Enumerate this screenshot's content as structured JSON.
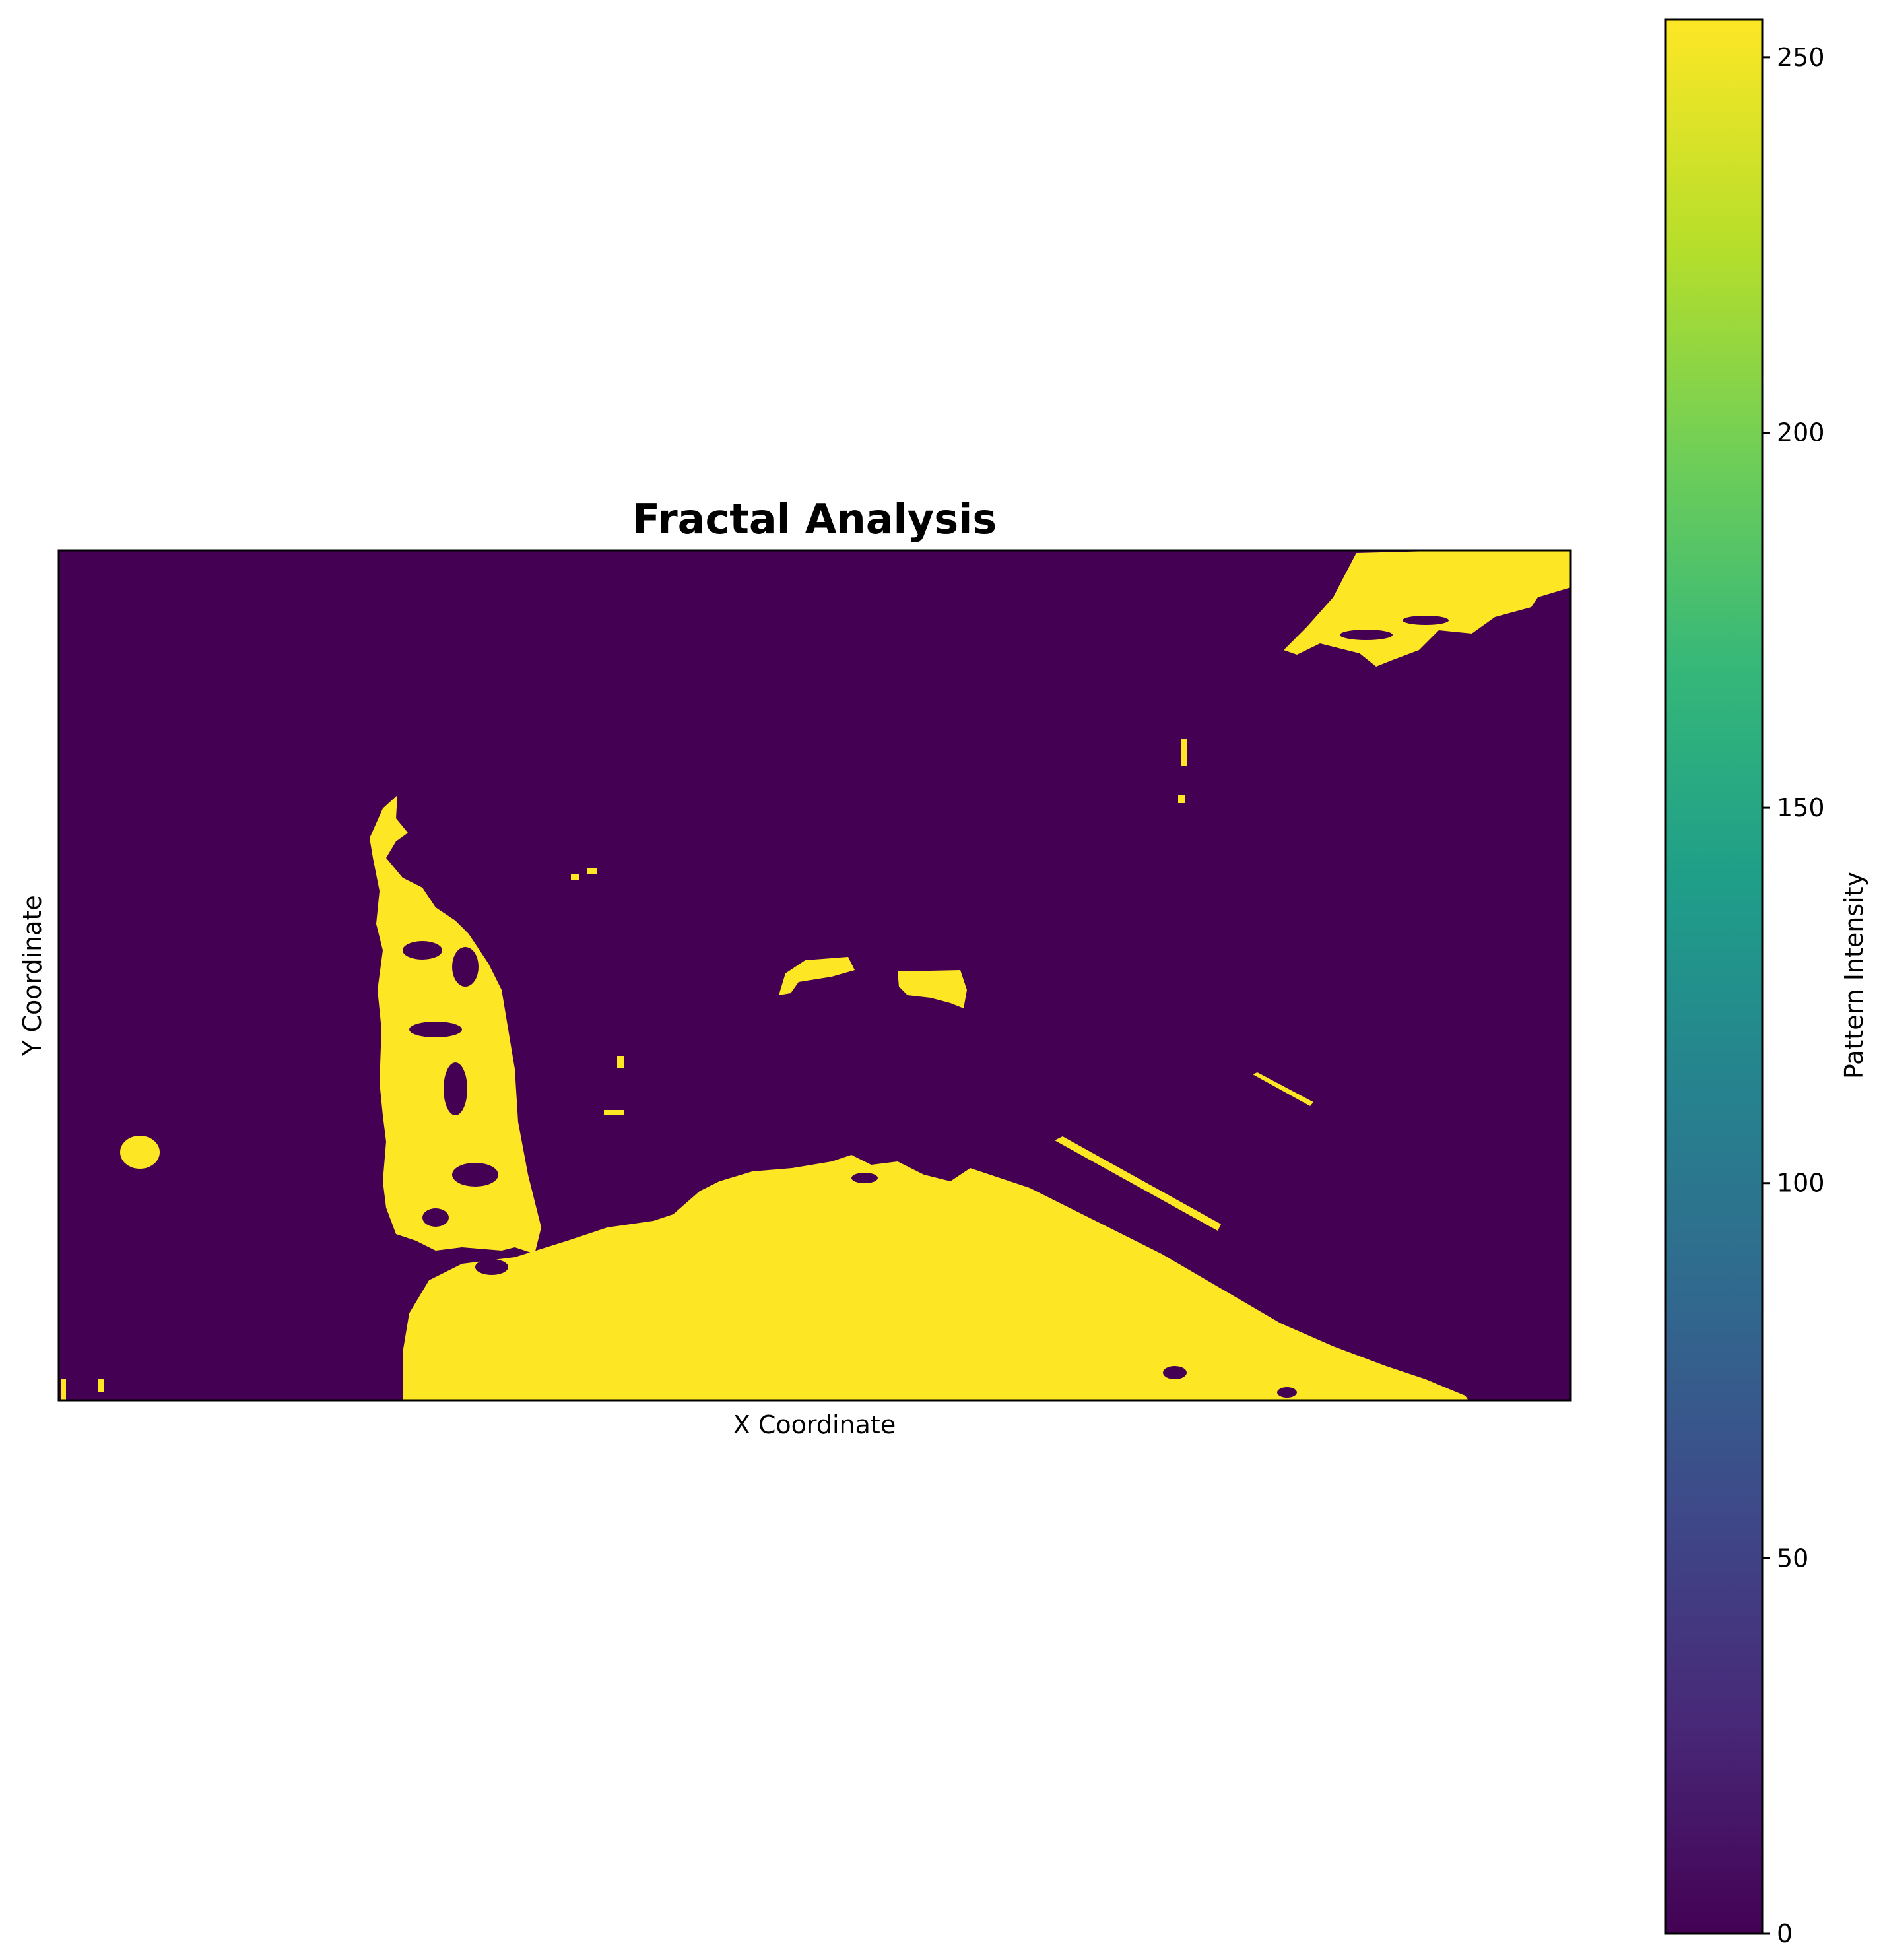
{
  "chart_data": {
    "type": "heatmap",
    "title": "Fractal Analysis",
    "xlabel": "X Coordinate",
    "ylabel": "Y Coordinate",
    "x_ticks_shown": false,
    "y_ticks_shown": false,
    "values_binary": [
      0,
      255
    ],
    "background_value": 0,
    "foreground_value": 255,
    "colormap": "viridis",
    "colorbar": {
      "label": "Pattern Intensity",
      "vmin": 0,
      "vmax": 255,
      "ticks": [
        0,
        50,
        100,
        150,
        200,
        250
      ],
      "tick_labels": [
        "0",
        "50",
        "100",
        "150",
        "200",
        "250"
      ],
      "colors": [
        "#440154",
        "#482878",
        "#3e4989",
        "#31688e",
        "#26828e",
        "#1f9e89",
        "#35b779",
        "#6ece58",
        "#b5de2b",
        "#fde725"
      ]
    },
    "low_color": "#440154",
    "high_color": "#fde725"
  }
}
